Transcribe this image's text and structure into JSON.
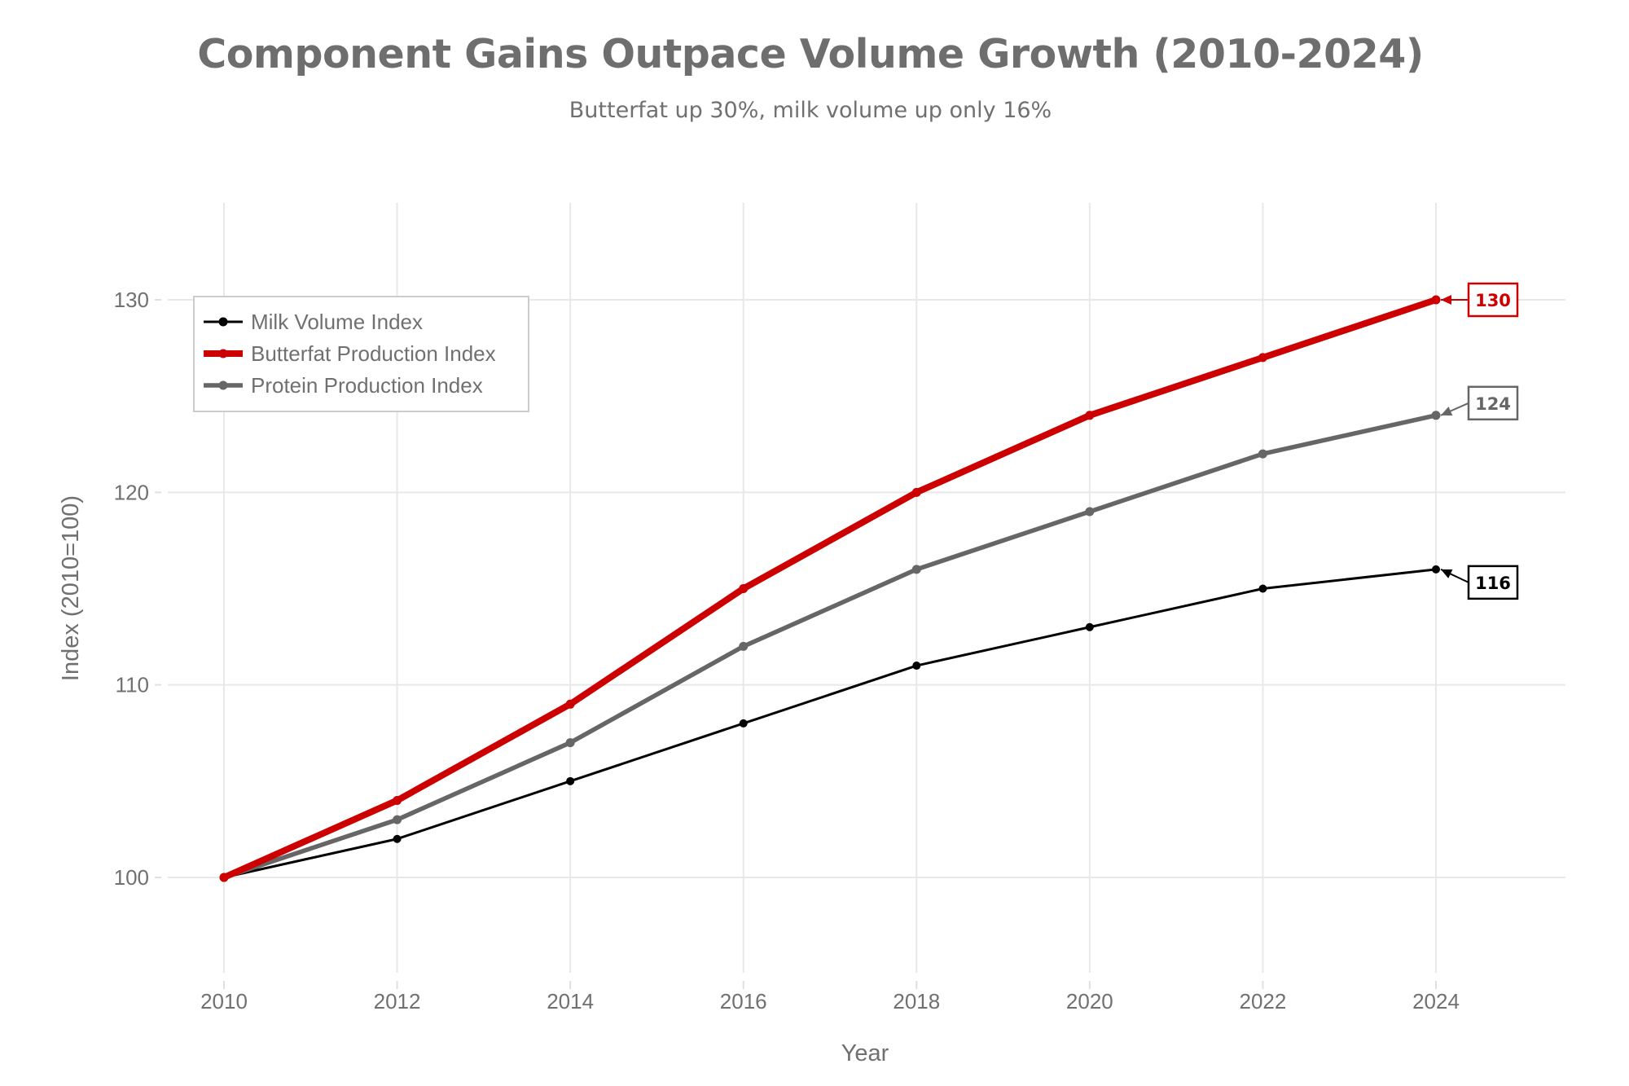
{
  "chart_data": {
    "type": "line",
    "title": "Component Gains Outpace Volume Growth (2010-2024)",
    "subtitle": "Butterfat up 30%, milk volume up only 16%",
    "xlabel": "Year",
    "ylabel": "Index (2010=100)",
    "x": [
      2010,
      2012,
      2014,
      2016,
      2018,
      2020,
      2022,
      2024
    ],
    "x_ticks": [
      "2010",
      "2012",
      "2014",
      "2016",
      "2018",
      "2020",
      "2022",
      "2024"
    ],
    "y_ticks": [
      "100",
      "110",
      "120",
      "130"
    ],
    "y_tick_values": [
      100,
      110,
      120,
      130
    ],
    "xlim": [
      2009.3,
      2025.5
    ],
    "ylim": [
      95,
      135
    ],
    "grid": true,
    "legend_position": "top-left",
    "series": [
      {
        "name": "Milk Volume Index",
        "color": "#000000",
        "values": [
          100,
          102,
          105,
          108,
          111,
          113,
          115,
          116
        ],
        "end_label": "116",
        "weight": "thin"
      },
      {
        "name": "Butterfat Production Index",
        "color": "#cc0000",
        "values": [
          100,
          104,
          109,
          115,
          120,
          124,
          127,
          130
        ],
        "end_label": "130",
        "weight": "thick"
      },
      {
        "name": "Protein Production Index",
        "color": "#666666",
        "values": [
          100,
          103,
          107,
          112,
          116,
          119,
          122,
          124
        ],
        "end_label": "124",
        "weight": "medium"
      }
    ]
  }
}
